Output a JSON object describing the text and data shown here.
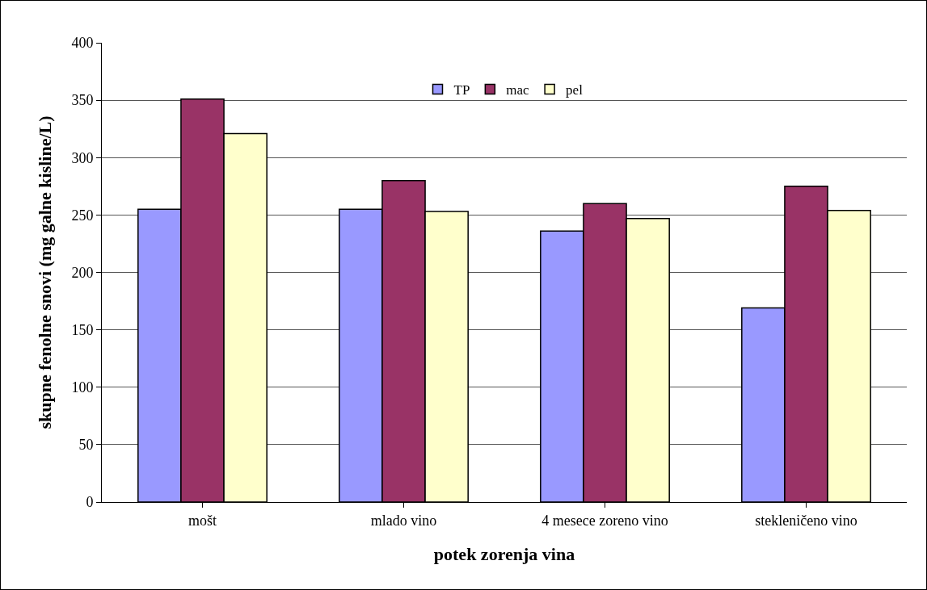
{
  "chart_data": {
    "type": "bar",
    "xlabel": "potek zorenja vina",
    "ylabel": "skupne fenolne snovi (mg galne kisline/L)",
    "categories": [
      "mošt",
      "mlado vino",
      "4 mesece zoreno vino",
      "stekleničeno vino"
    ],
    "series": [
      {
        "name": "TP",
        "color": "#9999ff",
        "values": [
          255,
          255,
          236,
          169
        ]
      },
      {
        "name": "mac",
        "color": "#993366",
        "values": [
          351,
          280,
          260,
          275
        ]
      },
      {
        "name": "pel",
        "color": "#ffffcc",
        "values": [
          321,
          253,
          247,
          254
        ]
      }
    ],
    "ylim": [
      0,
      400
    ],
    "yticks": [
      0,
      50,
      100,
      150,
      200,
      250,
      300,
      350,
      400
    ],
    "grid": "y",
    "legend": "top"
  }
}
